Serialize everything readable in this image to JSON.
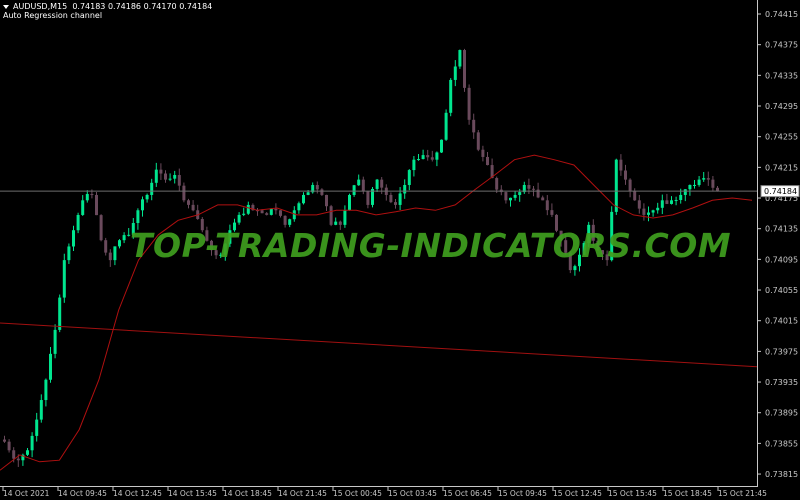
{
  "header": {
    "symbol": "AUDUSD,M15",
    "ohlc": "0.74183 0.74186 0.74170 0.74184",
    "indicator": "Auto Regression channel"
  },
  "watermark": "TOP-TRADING-INDICATORS.COM",
  "colors": {
    "background": "#000000",
    "bull": "#00e68f",
    "bear": "#6a4a5c",
    "ma_line": "#b01010",
    "channel_line": "#a01010",
    "price_line": "#6e6e6e",
    "axis": "#c8c8c8"
  },
  "chart_data": {
    "type": "candlestick",
    "symbol": "AUDUSD",
    "timeframe": "M15",
    "current_price": "0.74184",
    "ylim": [
      0.738,
      0.7444
    ],
    "y_ticks": [
      "0.74415",
      "0.74375",
      "0.74335",
      "0.74295",
      "0.74255",
      "0.74215",
      "0.74175",
      "0.74135",
      "0.74095",
      "0.74055",
      "0.74015",
      "0.73975",
      "0.73935",
      "0.73895",
      "0.73855",
      "0.73815"
    ],
    "x_ticks": [
      "14 Oct 2021",
      "14 Oct 09:45",
      "14 Oct 12:45",
      "14 Oct 15:45",
      "14 Oct 18:45",
      "14 Oct 21:45",
      "15 Oct 00:45",
      "15 Oct 03:45",
      "15 Oct 06:45",
      "15 Oct 09:45",
      "15 Oct 12:45",
      "15 Oct 15:45",
      "15 Oct 18:45",
      "15 Oct 21:45"
    ],
    "closes": [
      0.7386,
      0.73846,
      0.73833,
      0.73846,
      0.73886,
      0.73938,
      0.74003,
      0.74094,
      0.74133,
      0.74172,
      0.74179,
      0.7412,
      0.74094,
      0.7412,
      0.74127,
      0.74159,
      0.74179,
      0.74212,
      0.74199,
      0.74205,
      0.74172,
      0.74159,
      0.74133,
      0.74107,
      0.74101,
      0.74133,
      0.74153,
      0.74166,
      0.74159,
      0.74153,
      0.74159,
      0.7414,
      0.74159,
      0.74179,
      0.74192,
      0.74179,
      0.7414,
      0.7414,
      0.74179,
      0.74199,
      0.74166,
      0.74199,
      0.74179,
      0.74166,
      0.74192,
      0.74225,
      0.74231,
      0.74225,
      0.74251,
      0.74329,
      0.74368,
      0.74277,
      0.74238,
      0.74218,
      0.74186,
      0.74172,
      0.74179,
      0.74192,
      0.74186,
      0.74172,
      0.74153,
      0.7412,
      0.74081,
      0.74101,
      0.7414,
      0.74107,
      0.74094,
      0.74225,
      0.74199,
      0.74172,
      0.74153,
      0.74159,
      0.74172,
      0.74172,
      0.74179,
      0.74192,
      0.74199,
      0.74199,
      0.74184
    ],
    "moving_average": [
      0.7382,
      0.7384,
      0.73831,
      0.73833,
      0.73873,
      0.73938,
      0.74029,
      0.74094,
      0.74127,
      0.74146,
      0.74153,
      0.74166,
      0.74166,
      0.74159,
      0.74162,
      0.74153,
      0.74153,
      0.74159,
      0.74159,
      0.74153,
      0.74157,
      0.74162,
      0.74159,
      0.74166,
      0.74186,
      0.74205,
      0.74225,
      0.74231,
      0.74225,
      0.74218,
      0.74192,
      0.74166,
      0.74153,
      0.74149,
      0.74153,
      0.74162,
      0.74172,
      0.74175,
      0.74172
    ],
    "regression_line": [
      0.74012,
      0.73955
    ]
  }
}
